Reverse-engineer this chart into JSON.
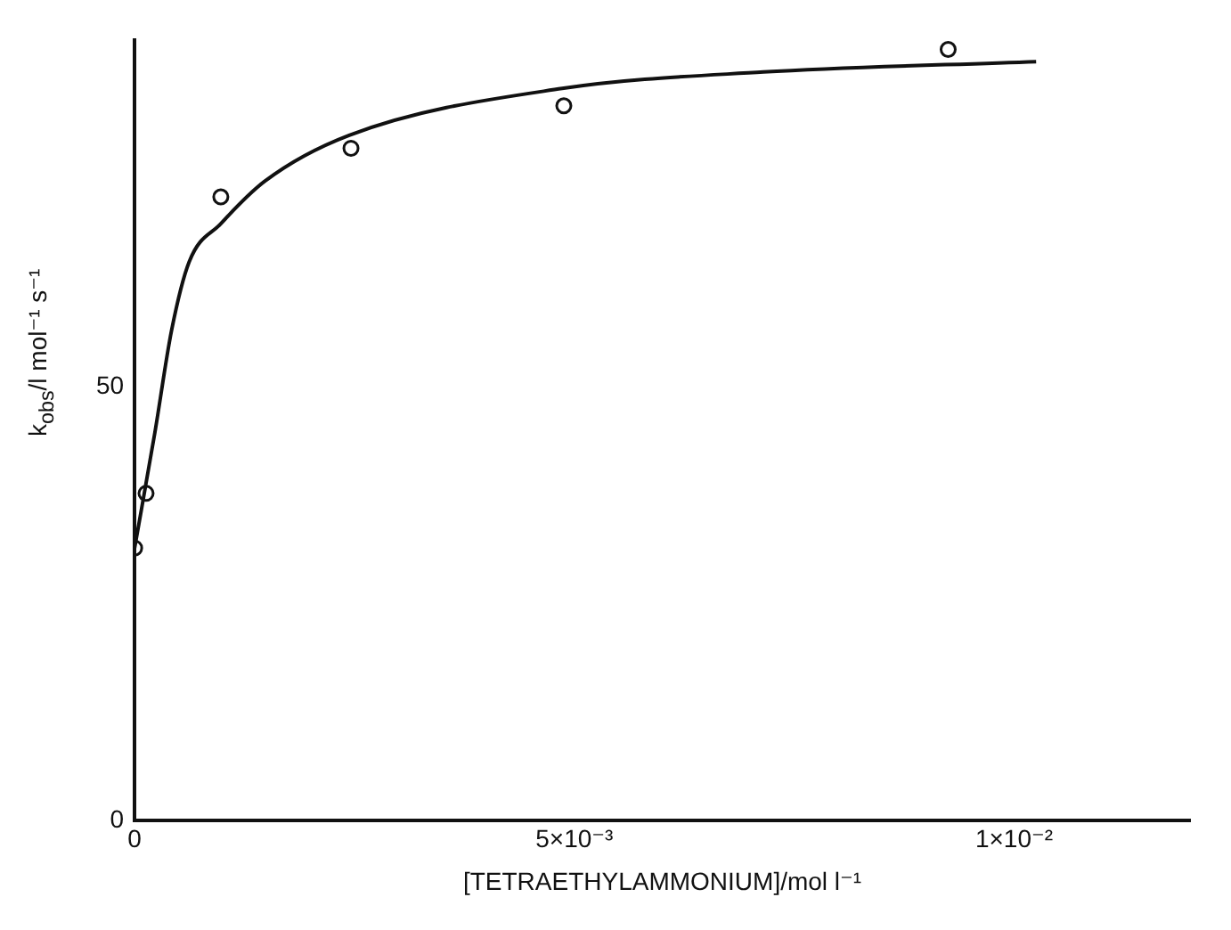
{
  "chart_data": {
    "type": "scatter",
    "xlabel": "[TETRAETHYLAMMONIUM]/mol l⁻¹",
    "ylabel": "k$_{obs}$/l mol⁻¹ s⁻¹",
    "xlim": [
      0,
      0.012
    ],
    "ylim": [
      0,
      90
    ],
    "xticks": [
      0,
      {
        "value": 0.005,
        "label": "5×10⁻³"
      },
      {
        "value": 0.01,
        "label": "1×10⁻²"
      }
    ],
    "yticks": [
      0,
      50
    ],
    "grid": false,
    "legend": false,
    "series": [
      {
        "type": "scatter",
        "marker": "circle",
        "color": "#111111",
        "x": [
          0,
          0.00013,
          0.00098,
          0.00246,
          0.00488,
          0.00925
        ],
        "values": [
          31.4,
          37.7,
          71.9,
          77.5,
          82.4,
          88.9
        ]
      },
      {
        "type": "line",
        "marker": "none",
        "line_style": "solid",
        "color": "#111111",
        "x": [
          0,
          0.00023,
          0.00042,
          0.00062,
          0.00098,
          0.00148,
          0.00244,
          0.00486,
          0.00715,
          0.01025
        ],
        "values": [
          31.4,
          44.7,
          56.5,
          64.4,
          68.8,
          73.7,
          79.0,
          84.4,
          86.3,
          87.5
        ]
      }
    ]
  }
}
